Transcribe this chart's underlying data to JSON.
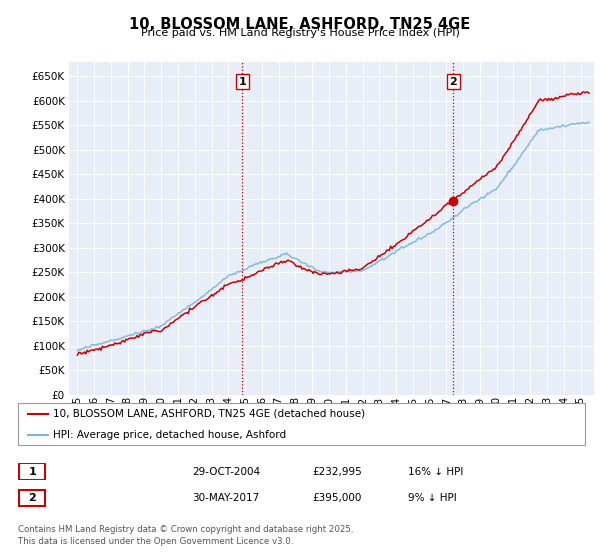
{
  "title": "10, BLOSSOM LANE, ASHFORD, TN25 4GE",
  "subtitle": "Price paid vs. HM Land Registry's House Price Index (HPI)",
  "ylim": [
    0,
    680000
  ],
  "yticks": [
    0,
    50000,
    100000,
    150000,
    200000,
    250000,
    300000,
    350000,
    400000,
    450000,
    500000,
    550000,
    600000,
    650000
  ],
  "xlim_start": 1994.5,
  "xlim_end": 2025.8,
  "xticks": [
    1995,
    1996,
    1997,
    1998,
    1999,
    2000,
    2001,
    2002,
    2003,
    2004,
    2005,
    2006,
    2007,
    2008,
    2009,
    2010,
    2011,
    2012,
    2013,
    2014,
    2015,
    2016,
    2017,
    2018,
    2019,
    2020,
    2021,
    2022,
    2023,
    2024,
    2025
  ],
  "hpi_color": "#7ab4d8",
  "price_color": "#cc0000",
  "vline_color": "#cc0000",
  "transaction1_x": 2004.83,
  "transaction1_y": 232995,
  "transaction1_label": "1",
  "transaction2_x": 2017.41,
  "transaction2_y": 395000,
  "transaction2_label": "2",
  "legend_line1": "10, BLOSSOM LANE, ASHFORD, TN25 4GE (detached house)",
  "legend_line2": "HPI: Average price, detached house, Ashford",
  "table_row1": [
    "1",
    "29-OCT-2004",
    "£232,995",
    "16% ↓ HPI"
  ],
  "table_row2": [
    "2",
    "30-MAY-2017",
    "£395,000",
    "9% ↓ HPI"
  ],
  "footer": "Contains HM Land Registry data © Crown copyright and database right 2025.\nThis data is licensed under the Open Government Licence v3.0.",
  "plot_bg": "#e8eef8",
  "grid_color": "#ffffff"
}
